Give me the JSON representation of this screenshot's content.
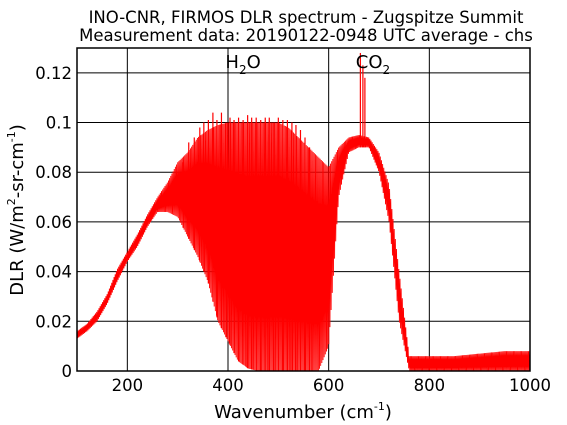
{
  "chart_data": {
    "type": "line",
    "title": "INO-CNR, FIRMOS DLR spectrum - Zugspitze Summit",
    "subtitle": "Measurement data: 20190122-0948 UTC average - chs",
    "xlabel": {
      "main": "Wavenumber (cm",
      "sup": "-1",
      "tail": ")"
    },
    "ylabel": {
      "p1": "DLR (W/m",
      "sup1": "2",
      "p2": "-sr-cm",
      "sup2": "-1",
      "p3": ")"
    },
    "xlim": [
      100,
      1000
    ],
    "ylim": [
      0,
      0.13
    ],
    "x_ticks": [
      200,
      400,
      600,
      800,
      1000
    ],
    "y_ticks": [
      0,
      0.02,
      0.04,
      0.06,
      0.08,
      0.1,
      0.12
    ],
    "y_tick_labels": [
      "0",
      "0.02",
      "0.04",
      "0.06",
      "0.08",
      "0.1",
      "0.12"
    ],
    "grid": true,
    "line_color": "#ff0000",
    "annotations": [
      {
        "id": "h2o",
        "base": "H",
        "sub": "2",
        "tail": "O",
        "x": 430,
        "y": 0.122
      },
      {
        "id": "co2",
        "base": "CO",
        "sub": "2",
        "tail": "",
        "x": 688,
        "y": 0.122
      }
    ],
    "series": [
      {
        "envelope_upper": [
          [
            100,
            0.016
          ],
          [
            120,
            0.019
          ],
          [
            140,
            0.024
          ],
          [
            160,
            0.031
          ],
          [
            180,
            0.041
          ],
          [
            200,
            0.048
          ],
          [
            220,
            0.055
          ],
          [
            240,
            0.063
          ],
          [
            260,
            0.07
          ],
          [
            280,
            0.076
          ],
          [
            300,
            0.084
          ],
          [
            320,
            0.088
          ],
          [
            340,
            0.094
          ],
          [
            360,
            0.097
          ],
          [
            380,
            0.099
          ],
          [
            400,
            0.1
          ],
          [
            420,
            0.1
          ],
          [
            440,
            0.1
          ],
          [
            460,
            0.1
          ],
          [
            480,
            0.1
          ],
          [
            500,
            0.1
          ],
          [
            520,
            0.098
          ],
          [
            540,
            0.094
          ],
          [
            560,
            0.09
          ],
          [
            580,
            0.086
          ],
          [
            600,
            0.082
          ],
          [
            620,
            0.09
          ],
          [
            640,
            0.094
          ],
          [
            660,
            0.095
          ],
          [
            680,
            0.094
          ],
          [
            700,
            0.088
          ],
          [
            720,
            0.075
          ],
          [
            740,
            0.04
          ],
          [
            760,
            0.006
          ],
          [
            780,
            0.006
          ],
          [
            800,
            0.006
          ],
          [
            850,
            0.006
          ],
          [
            900,
            0.007
          ],
          [
            950,
            0.008
          ],
          [
            1000,
            0.008
          ]
        ],
        "envelope_lower": [
          [
            100,
            0.013
          ],
          [
            120,
            0.016
          ],
          [
            140,
            0.02
          ],
          [
            160,
            0.027
          ],
          [
            180,
            0.036
          ],
          [
            200,
            0.044
          ],
          [
            220,
            0.05
          ],
          [
            240,
            0.058
          ],
          [
            260,
            0.064
          ],
          [
            280,
            0.064
          ],
          [
            300,
            0.062
          ],
          [
            320,
            0.054
          ],
          [
            340,
            0.046
          ],
          [
            360,
            0.036
          ],
          [
            380,
            0.02
          ],
          [
            400,
            0.012
          ],
          [
            420,
            0.004
          ],
          [
            440,
            0.001
          ],
          [
            460,
            0.0
          ],
          [
            480,
            0.0
          ],
          [
            500,
            0.0
          ],
          [
            520,
            0.0
          ],
          [
            540,
            0.0
          ],
          [
            560,
            0.0
          ],
          [
            580,
            0.0
          ],
          [
            600,
            0.01
          ],
          [
            620,
            0.07
          ],
          [
            640,
            0.088
          ],
          [
            660,
            0.09
          ],
          [
            680,
            0.09
          ],
          [
            700,
            0.08
          ],
          [
            720,
            0.06
          ],
          [
            740,
            0.02
          ],
          [
            760,
            0.0
          ],
          [
            780,
            0.0
          ],
          [
            800,
            0.0
          ],
          [
            850,
            0.0
          ],
          [
            900,
            0.0
          ],
          [
            950,
            0.0
          ],
          [
            1000,
            0.0
          ]
        ],
        "spikes": [
          [
            663,
            0.128
          ],
          [
            668,
            0.123
          ],
          [
            672,
            0.118
          ],
          [
            311,
            0.084
          ],
          [
            322,
            0.092
          ],
          [
            333,
            0.094
          ],
          [
            344,
            0.098
          ],
          [
            352,
            0.1
          ],
          [
            361,
            0.101
          ],
          [
            370,
            0.104
          ],
          [
            378,
            0.101
          ],
          [
            387,
            0.104
          ],
          [
            396,
            0.1
          ],
          [
            404,
            0.102
          ],
          [
            412,
            0.101
          ],
          [
            421,
            0.102
          ],
          [
            430,
            0.101
          ],
          [
            439,
            0.103
          ],
          [
            447,
            0.102
          ],
          [
            456,
            0.102
          ],
          [
            465,
            0.101
          ],
          [
            474,
            0.102
          ],
          [
            482,
            0.102
          ],
          [
            491,
            0.1
          ],
          [
            500,
            0.102
          ],
          [
            509,
            0.101
          ],
          [
            518,
            0.101
          ],
          [
            527,
            0.1
          ],
          [
            535,
            0.099
          ],
          [
            544,
            0.097
          ],
          [
            553,
            0.094
          ],
          [
            562,
            0.09
          ]
        ]
      }
    ]
  }
}
